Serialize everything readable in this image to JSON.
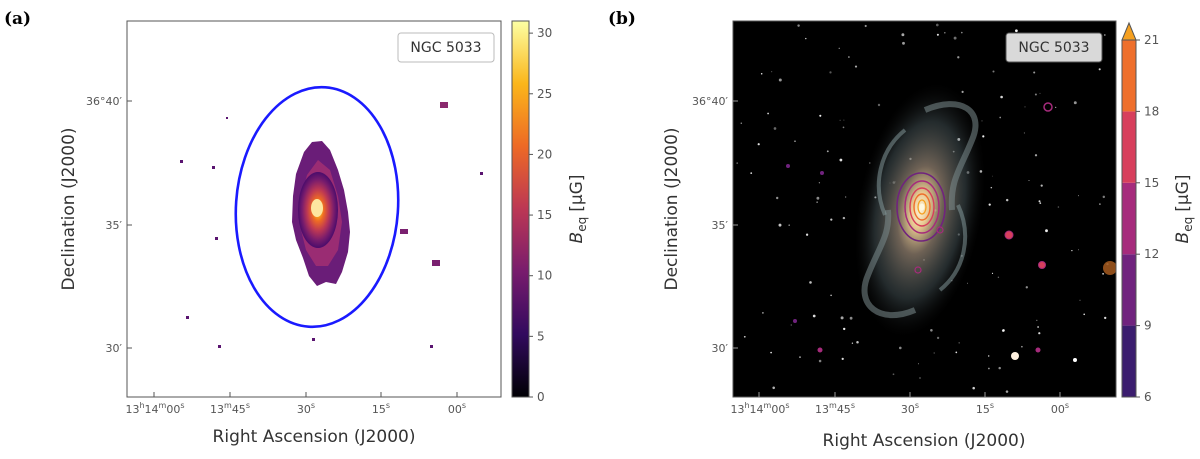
{
  "chart_data": [
    {
      "panel": "(a)",
      "type": "heatmap",
      "object_label": "NGC 5033",
      "xlabel": "Right Ascension (J2000)",
      "ylabel": "Declination (J2000)",
      "x_ticks": [
        {
          "label": "13h14m00s",
          "text": {
            "h": "13",
            "hu": "h",
            "m": "14",
            "mu": "m",
            "s": "00",
            "su": "s"
          }
        },
        {
          "label": "13m45s",
          "text": {
            "m": "13",
            "mu": "m",
            "s": "45",
            "su": "s"
          }
        },
        {
          "label": "30s",
          "text": {
            "s": "30",
            "su": "s"
          }
        },
        {
          "label": "15s",
          "text": {
            "s": "15",
            "su": "s"
          }
        },
        {
          "label": "00s",
          "text": {
            "s": "00",
            "su": "s"
          }
        }
      ],
      "y_ticks": [
        "36°40′",
        "35′",
        "30′"
      ],
      "colorbar": {
        "label": "B",
        "label_sub": "eq",
        "label_unit": "[μG]",
        "ticks": [
          "0",
          "5",
          "10",
          "15",
          "20",
          "25",
          "30"
        ],
        "range": [
          0,
          31
        ],
        "colormap": "inferno",
        "colors": [
          "#000004",
          "#320a5e",
          "#781c6d",
          "#bc3754",
          "#ed6925",
          "#fbb61a",
          "#fcffa4"
        ]
      },
      "overlay": {
        "shape": "ellipse",
        "color": "#1a1aff"
      }
    },
    {
      "panel": "(b)",
      "type": "heatmap",
      "object_label": "NGC 5033",
      "xlabel": "Right Ascension (J2000)",
      "ylabel": "Declination (J2000)",
      "x_ticks": [
        {
          "label": "13h14m00s",
          "text": {
            "h": "13",
            "hu": "h",
            "m": "14",
            "mu": "m",
            "s": "00",
            "su": "s"
          }
        },
        {
          "label": "13m45s",
          "text": {
            "m": "13",
            "mu": "m",
            "s": "45",
            "su": "s"
          }
        },
        {
          "label": "30s",
          "text": {
            "s": "30",
            "su": "s"
          }
        },
        {
          "label": "15s",
          "text": {
            "s": "15",
            "su": "s"
          }
        },
        {
          "label": "00s",
          "text": {
            "s": "00",
            "su": "s"
          }
        }
      ],
      "y_ticks": [
        "36°40′",
        "35′",
        "30′"
      ],
      "colorbar": {
        "label": "B",
        "label_sub": "eq",
        "label_unit": "[μG]",
        "ticks": [
          "6",
          "9",
          "12",
          "15",
          "18",
          "21"
        ],
        "range": [
          6,
          21
        ],
        "extend": "max",
        "bands": [
          {
            "from": 6,
            "to": 9,
            "color": "#3b1d6e"
          },
          {
            "from": 9,
            "to": 12,
            "color": "#70237e"
          },
          {
            "from": 12,
            "to": 15,
            "color": "#a62b7c"
          },
          {
            "from": 15,
            "to": 18,
            "color": "#d73f5c"
          },
          {
            "from": 18,
            "to": 21,
            "color": "#ee6f2c"
          }
        ],
        "extend_color": "#f5a020"
      }
    }
  ]
}
